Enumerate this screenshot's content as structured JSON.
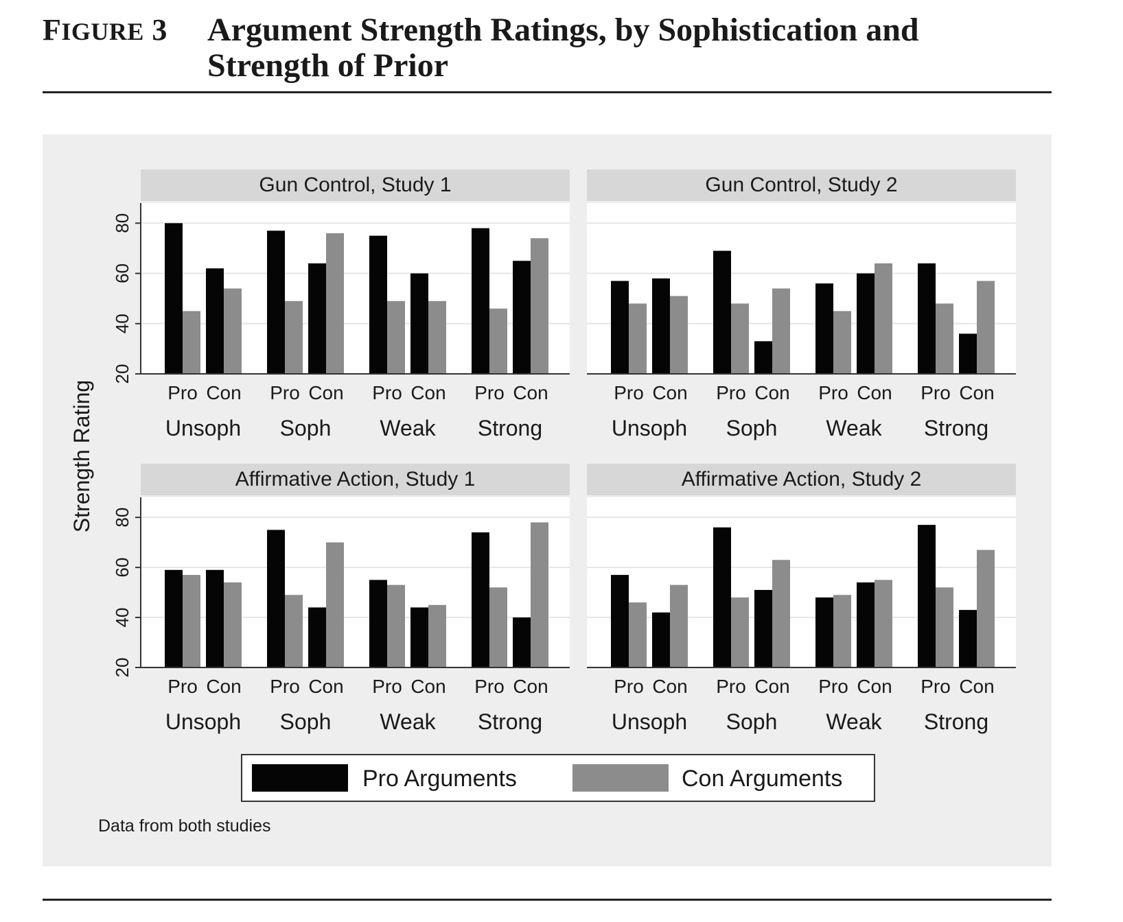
{
  "figure": {
    "label": "Figure 3",
    "title": "Argument Strength Ratings, by Sophistication and Strength of Prior",
    "note": "Data from both studies"
  },
  "colors": {
    "pro": "#050505",
    "con": "#8c8c8c",
    "panel_bg": "#eeeeee",
    "strip_bg": "#d7d7d7",
    "grid": "#e6e6e6"
  },
  "chart_data": {
    "type": "bar",
    "ylabel": "Strength Rating",
    "ylim": [
      20,
      88
    ],
    "yticks": [
      20,
      40,
      60,
      80
    ],
    "groups": [
      "Unsoph",
      "Soph",
      "Weak",
      "Strong"
    ],
    "bar_labels": [
      "Pro",
      "Con"
    ],
    "legend": {
      "position": "bottom",
      "entries": [
        "Pro Arguments",
        "Con Arguments"
      ]
    },
    "grid": true,
    "panels": [
      {
        "title": "Gun Control, Study 1",
        "values": [
          {
            "pro_label": [
              80,
              45
            ],
            "con_label": [
              62,
              54
            ]
          },
          {
            "pro_label": [
              77,
              49
            ],
            "con_label": [
              64,
              76
            ]
          },
          {
            "pro_label": [
              75,
              49
            ],
            "con_label": [
              60,
              49
            ]
          },
          {
            "pro_label": [
              78,
              46
            ],
            "con_label": [
              65,
              74
            ]
          }
        ]
      },
      {
        "title": "Gun Control, Study 2",
        "values": [
          {
            "pro_label": [
              57,
              48
            ],
            "con_label": [
              58,
              51
            ]
          },
          {
            "pro_label": [
              69,
              48
            ],
            "con_label": [
              33,
              54
            ]
          },
          {
            "pro_label": [
              56,
              45
            ],
            "con_label": [
              60,
              64
            ]
          },
          {
            "pro_label": [
              64,
              48
            ],
            "con_label": [
              36,
              57
            ]
          }
        ]
      },
      {
        "title": "Affirmative Action, Study 1",
        "values": [
          {
            "pro_label": [
              59,
              57
            ],
            "con_label": [
              59,
              54
            ]
          },
          {
            "pro_label": [
              75,
              49
            ],
            "con_label": [
              44,
              70
            ]
          },
          {
            "pro_label": [
              55,
              53
            ],
            "con_label": [
              44,
              45
            ]
          },
          {
            "pro_label": [
              74,
              52
            ],
            "con_label": [
              40,
              78
            ]
          }
        ]
      },
      {
        "title": "Affirmative Action, Study 2",
        "values": [
          {
            "pro_label": [
              57,
              46
            ],
            "con_label": [
              42,
              53
            ]
          },
          {
            "pro_label": [
              76,
              48
            ],
            "con_label": [
              51,
              63
            ]
          },
          {
            "pro_label": [
              48,
              49
            ],
            "con_label": [
              54,
              55
            ]
          },
          {
            "pro_label": [
              77,
              52
            ],
            "con_label": [
              43,
              67
            ]
          }
        ]
      }
    ]
  }
}
